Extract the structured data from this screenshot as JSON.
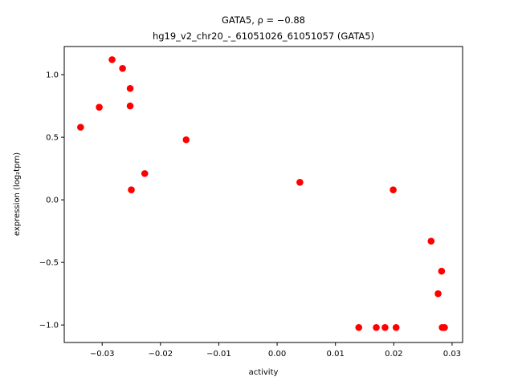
{
  "chart_data": {
    "type": "scatter",
    "title_line1": "GATA5, ρ = −0.88",
    "title_line2": "hg19_v2_chr20_-_61051026_61051057 (GATA5)",
    "xlabel": "activity",
    "ylabel": "expression (log₂tpm)",
    "xlim": [
      -0.0365,
      0.0318
    ],
    "ylim": [
      -1.14,
      1.225
    ],
    "xticks": [
      {
        "value": -0.03,
        "label": "−0.03"
      },
      {
        "value": -0.02,
        "label": "−0.02"
      },
      {
        "value": -0.01,
        "label": "−0.01"
      },
      {
        "value": 0.0,
        "label": "0.00"
      },
      {
        "value": 0.01,
        "label": "0.01"
      },
      {
        "value": 0.02,
        "label": "0.02"
      },
      {
        "value": 0.03,
        "label": "0.03"
      }
    ],
    "yticks": [
      {
        "value": -1.0,
        "label": "−1.0"
      },
      {
        "value": -0.5,
        "label": "−0.5"
      },
      {
        "value": 0.0,
        "label": "0.0"
      },
      {
        "value": 0.5,
        "label": "0.5"
      },
      {
        "value": 1.0,
        "label": "1.0"
      }
    ],
    "grid": false,
    "marker_color": "#ff0000",
    "points": [
      {
        "x": -0.0337,
        "y": 0.58
      },
      {
        "x": -0.0305,
        "y": 0.74
      },
      {
        "x": -0.0283,
        "y": 1.12
      },
      {
        "x": -0.0265,
        "y": 1.05
      },
      {
        "x": -0.0252,
        "y": 0.89
      },
      {
        "x": -0.0252,
        "y": 0.75
      },
      {
        "x": -0.025,
        "y": 0.08
      },
      {
        "x": -0.0227,
        "y": 0.21
      },
      {
        "x": -0.0156,
        "y": 0.48
      },
      {
        "x": 0.0039,
        "y": 0.14
      },
      {
        "x": 0.014,
        "y": -1.02
      },
      {
        "x": 0.017,
        "y": -1.02
      },
      {
        "x": 0.0185,
        "y": -1.02
      },
      {
        "x": 0.0199,
        "y": 0.08
      },
      {
        "x": 0.0204,
        "y": -1.02
      },
      {
        "x": 0.0264,
        "y": -0.33
      },
      {
        "x": 0.0276,
        "y": -0.75
      },
      {
        "x": 0.0282,
        "y": -0.57
      },
      {
        "x": 0.0283,
        "y": -1.02
      },
      {
        "x": 0.0287,
        "y": -1.02
      }
    ]
  }
}
